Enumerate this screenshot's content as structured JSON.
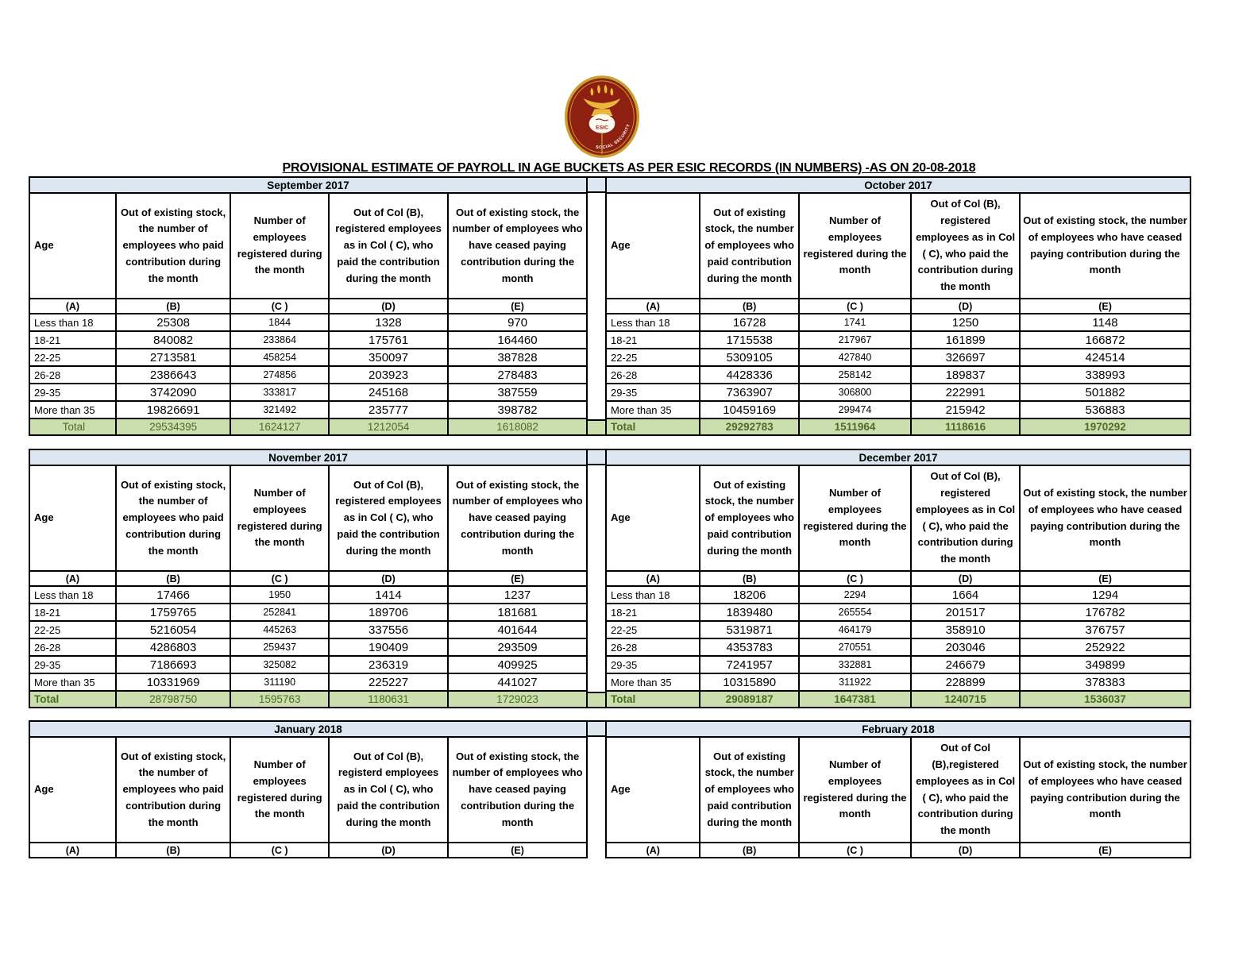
{
  "title": "PROVISIONAL ESTIMATE OF PAYROLL IN AGE BUCKETS AS PER ESIC RECORDS (IN NUMBERS) -AS ON 20-08-2018",
  "logo": {
    "esic": "ESIC",
    "social": "SOCIAL SECURITY"
  },
  "colors": {
    "header_blue": "#DCE6F1",
    "total_green": "#CBDFAE",
    "total_text": "#4E6B27",
    "logo_maroon": "#8E2012",
    "logo_gold": "#C9A02E",
    "flame_gold": "#F2BC3A"
  },
  "column_letters": [
    "(A)",
    "(B)",
    "(C )",
    "(D)",
    "(E)"
  ],
  "months": [
    {
      "name": "September 2017",
      "headers": [
        "Age",
        "Out of existing stock, the number of employees who paid contribution during the month",
        "Number of employees registered during the month",
        "Out of Col (B), registered employees as in Col ( C), who paid the contribution during the month",
        "Out of existing stock, the number of  employees  who have ceased paying contribution during the month"
      ],
      "rows": [
        [
          "Less than 18",
          "25308",
          "1844",
          "1328",
          "970"
        ],
        [
          "18-21",
          "840082",
          "233864",
          "175761",
          "164460"
        ],
        [
          "22-25",
          "2713581",
          "458254",
          "350097",
          "387828"
        ],
        [
          "26-28",
          "2386643",
          "274856",
          "203923",
          "278483"
        ],
        [
          "29-35",
          "3742090",
          "333817",
          "245168",
          "387559"
        ],
        [
          "More than 35",
          "19826691",
          "321492",
          "235777",
          "398782"
        ]
      ],
      "total": [
        "Total",
        "29534395",
        "1624127",
        "1212054",
        "1618082"
      ],
      "total_style": "center"
    },
    {
      "name": "October 2017",
      "headers": [
        "Age",
        "Out of existing stock, the number of employees who paid contribution during the month",
        "Number of employees registered during the month",
        "Out of Col (B), registered employees as in Col ( C), who paid the contribution during the month",
        "Out of existing stock, the number of  employees  who have ceased paying contribution during the month"
      ],
      "rows": [
        [
          "Less than 18",
          "16728",
          "1741",
          "1250",
          "1148"
        ],
        [
          "18-21",
          "1715538",
          "217967",
          "161899",
          "166872"
        ],
        [
          "22-25",
          "5309105",
          "427840",
          "326697",
          "424514"
        ],
        [
          "26-28",
          "4428336",
          "258142",
          "189837",
          "338993"
        ],
        [
          "29-35",
          "7363907",
          "306800",
          "222991",
          "501882"
        ],
        [
          "More than 35",
          "10459169",
          "299474",
          "215942",
          "536883"
        ]
      ],
      "total": [
        "Total",
        "29292783",
        "1511964",
        "1118616",
        "1970292"
      ],
      "total_style": "bold-all"
    },
    {
      "name": "November 2017",
      "headers": [
        "Age",
        "Out of existing stock, the number of employees who paid contribution during the month",
        "Number of employees registered during the month",
        "Out of Col (B), registered employees as in Col ( C), who paid the contribution during the month",
        "Out of existing stock, the number of  employees  who have ceased paying contribution during the month"
      ],
      "rows": [
        [
          "Less than 18",
          "17466",
          "1950",
          "1414",
          "1237"
        ],
        [
          "18-21",
          "1759765",
          "252841",
          "189706",
          "181681"
        ],
        [
          "22-25",
          "5216054",
          "445263",
          "337556",
          "401644"
        ],
        [
          "26-28",
          "4286803",
          "259437",
          "190409",
          "293509"
        ],
        [
          "29-35",
          "7186693",
          "325082",
          "236319",
          "409925"
        ],
        [
          "More than 35",
          "10331969",
          "311190",
          "225227",
          "441027"
        ]
      ],
      "total": [
        "Total",
        "28798750",
        "1595763",
        "1180631",
        "1729023"
      ],
      "total_style": "bold-label"
    },
    {
      "name": "December 2017",
      "headers": [
        "Age",
        "Out of existing stock, the number of employees who paid contribution during the month",
        "Number of employees registered during the month",
        "Out of Col (B), registered employees as in Col ( C), who paid the contribution during the month",
        "Out of existing stock, the number of  employees  who have ceased paying contribution during the month"
      ],
      "rows": [
        [
          "Less than 18",
          "18206",
          "2294",
          "1664",
          "1294"
        ],
        [
          "18-21",
          "1839480",
          "265554",
          "201517",
          "176782"
        ],
        [
          "22-25",
          "5319871",
          "464179",
          "358910",
          "376757"
        ],
        [
          "26-28",
          "4353783",
          "270551",
          "203046",
          "252922"
        ],
        [
          "29-35",
          "7241957",
          "332881",
          "246679",
          "349899"
        ],
        [
          "More than 35",
          "10315890",
          "311922",
          "228899",
          "378383"
        ]
      ],
      "total": [
        "Total",
        "29089187",
        "1647381",
        "1240715",
        "1536037"
      ],
      "total_style": "bold-all"
    },
    {
      "name": "January 2018",
      "headers": [
        "Age",
        "Out of existing stock, the number of employees who paid contribution during the month",
        "Number of employees registered during the month",
        "Out of Col (B), registerd employees as in Col ( C), who paid the contribution during the month",
        "Out of existing stock, the number of  employees  who have ceased paying contribution during the month"
      ],
      "rows": [],
      "total": null,
      "total_style": ""
    },
    {
      "name": "February 2018",
      "headers": [
        "Age",
        "Out of existing stock, the number of employees who paid contribution during the month",
        "Number of employees registered during the month",
        "Out of Col (B),registered employees as in Col ( C), who paid the contribution during the month",
        "Out of existing stock, the number of  employees  who have ceased paying contribution during the month"
      ],
      "rows": [],
      "total": null,
      "total_style": ""
    }
  ]
}
